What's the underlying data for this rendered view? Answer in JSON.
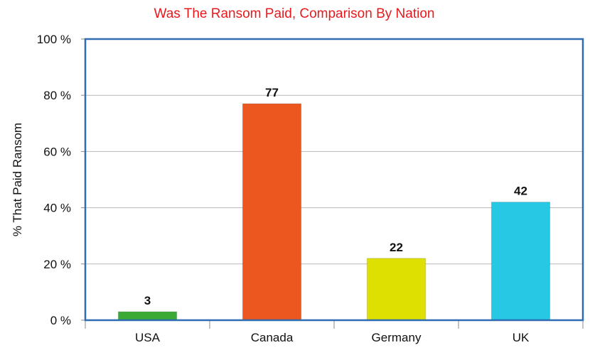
{
  "chart_data": {
    "type": "bar",
    "title": "Was The Ransom Paid, Comparison By Nation",
    "xlabel": "",
    "ylabel": "% That Paid Ransom",
    "categories": [
      "USA",
      "Canada",
      "Germany",
      "UK"
    ],
    "values": [
      3,
      77,
      22,
      42
    ],
    "data_labels": [
      "3",
      "77",
      "22",
      "42"
    ],
    "y_ticks": [
      "0 %",
      "20 %",
      "40 %",
      "60 %",
      "80 %",
      "100 %"
    ],
    "ylim": [
      0,
      100
    ],
    "grid": true,
    "legend": "none",
    "colors": [
      "#3aaa35",
      "#ec561f",
      "#dde000",
      "#27c8e3"
    ],
    "title_color": "#e8191d",
    "frame_color": "#2f6db3"
  }
}
